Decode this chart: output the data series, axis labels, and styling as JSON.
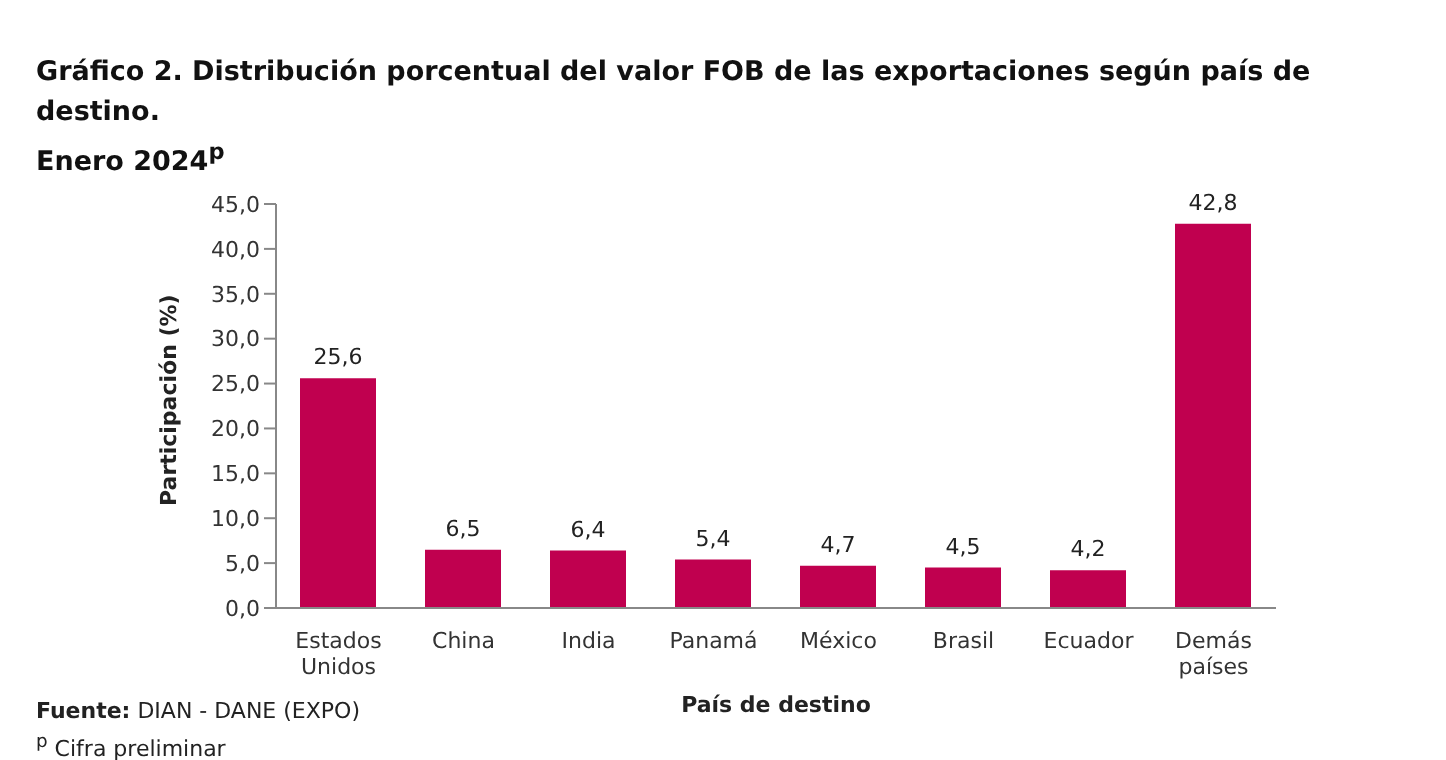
{
  "chart_data": {
    "type": "bar",
    "title": "Gráfico 2. Distribución porcentual del valor FOB de las exportaciones según país de destino.",
    "subtitle": "Enero 2024$^{p}$",
    "xlabel": "País de destino",
    "ylabel": "Participación (%)",
    "categories": [
      "Estados Unidos",
      "China",
      "India",
      "Panamá",
      "México",
      "Brasil",
      "Ecuador",
      "Demás países"
    ],
    "values": [
      25.6,
      6.5,
      6.4,
      5.4,
      4.7,
      4.5,
      4.2,
      42.8
    ],
    "value_labels": [
      "25,6",
      "6,5",
      "6,4",
      "5,4",
      "4,7",
      "4,5",
      "4,2",
      "42,8"
    ],
    "color": "#c0004f",
    "ylim": [
      0,
      45
    ],
    "yticks": [
      {
        "value": 0,
        "label": "0,0"
      },
      {
        "value": 5,
        "label": "5,0"
      },
      {
        "value": 10,
        "label": "10,0"
      },
      {
        "value": 15,
        "label": "15,0"
      },
      {
        "value": 20,
        "label": "20,0"
      },
      {
        "value": 25,
        "label": "25,0"
      },
      {
        "value": 30,
        "label": "30,0"
      },
      {
        "value": 35,
        "label": "35,0"
      },
      {
        "value": 40,
        "label": "40,0"
      },
      {
        "value": 45,
        "label": "45,0"
      }
    ],
    "grid": false,
    "legend": false,
    "annotations": [
      "Fuente: DIAN - DANE (EXPO)",
      "$^{p}$ Cifra preliminar"
    ]
  }
}
